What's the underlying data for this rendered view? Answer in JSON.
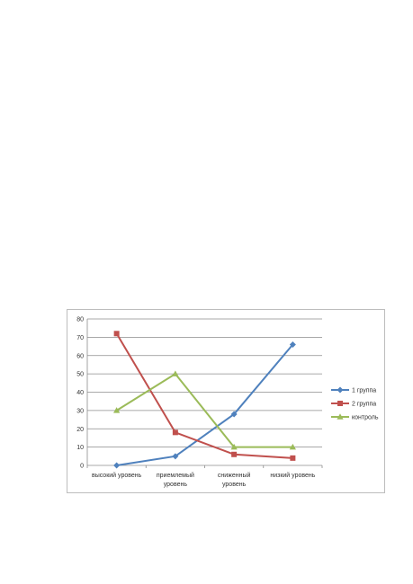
{
  "chart_data": {
    "type": "line",
    "categories": [
      [
        "высокий уровень"
      ],
      [
        "приемлемый",
        "уровень"
      ],
      [
        "сниженный",
        "уровень"
      ],
      [
        "низкий уровень"
      ]
    ],
    "ylim": [
      0,
      80
    ],
    "yticks": [
      0,
      10,
      20,
      30,
      40,
      50,
      60,
      70,
      80
    ],
    "grid": true,
    "legend_position": "right",
    "series": [
      {
        "name": "1 группа",
        "color": "#4f81bd",
        "marker": "diamond",
        "values": [
          0,
          5,
          28,
          66
        ]
      },
      {
        "name": "2 группа",
        "color": "#c0504d",
        "marker": "square",
        "values": [
          72,
          18,
          6,
          4
        ]
      },
      {
        "name": "контроль",
        "color": "#9bbb59",
        "marker": "triangle",
        "values": [
          30,
          50,
          10,
          10
        ]
      }
    ]
  }
}
